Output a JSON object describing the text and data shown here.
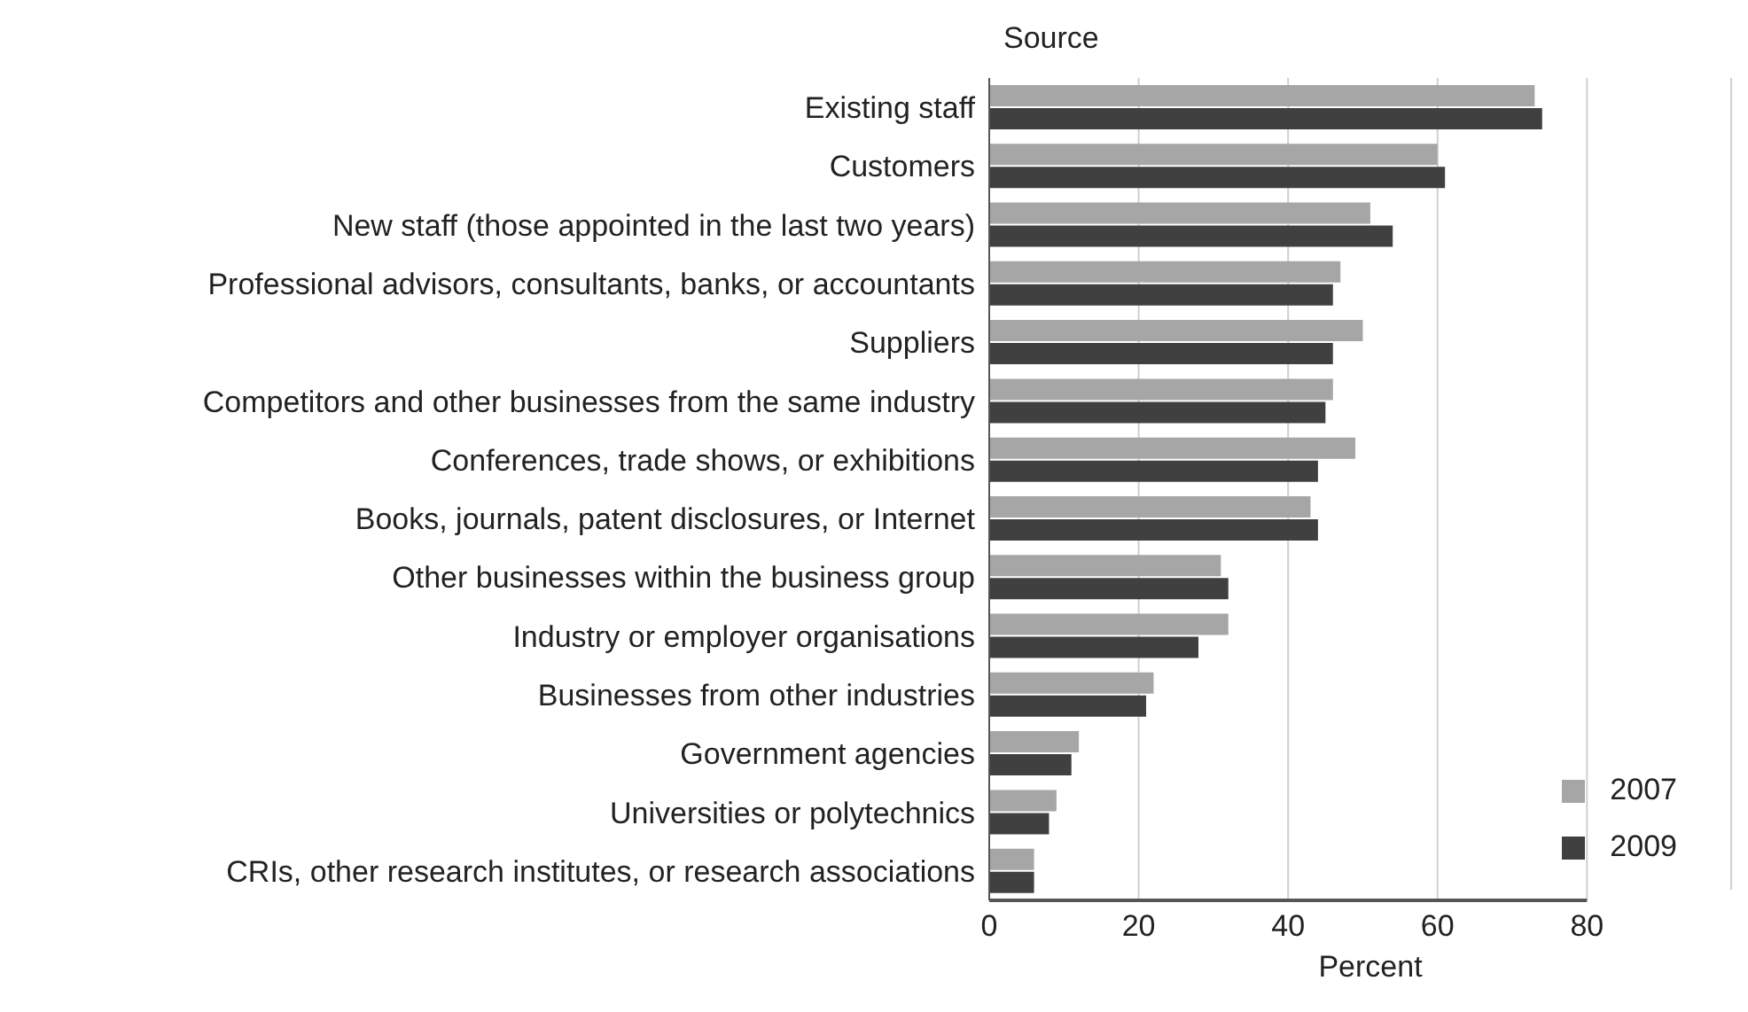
{
  "chart_data": {
    "type": "bar",
    "orientation": "horizontal",
    "ylabel": "Source",
    "xlabel": "Percent",
    "categories": [
      "Existing staff",
      "Customers",
      "New staff (those appointed in the last two years)",
      "Professional advisors, consultants, banks, or accountants",
      "Suppliers",
      "Competitors and other businesses from the same industry",
      "Conferences, trade shows, or exhibitions",
      "Books, journals, patent disclosures, or Internet",
      "Other businesses within the business group",
      "Industry or employer organisations",
      "Businesses from other industries",
      "Government agencies",
      "Universities or polytechnics",
      "CRIs, other research institutes, or research associations"
    ],
    "series": [
      {
        "name": "2007",
        "color": "#a6a6a6",
        "values": [
          73,
          60,
          51,
          47,
          50,
          46,
          49,
          43,
          31,
          32,
          22,
          12,
          9,
          6
        ]
      },
      {
        "name": "2009",
        "color": "#404040",
        "values": [
          74,
          61,
          54,
          46,
          46,
          45,
          44,
          44,
          32,
          28,
          21,
          11,
          8,
          6
        ]
      }
    ],
    "xlim": [
      0,
      80
    ],
    "xticks": [
      0,
      20,
      40,
      60,
      80
    ],
    "grid": "x",
    "legend": "bottom right"
  }
}
